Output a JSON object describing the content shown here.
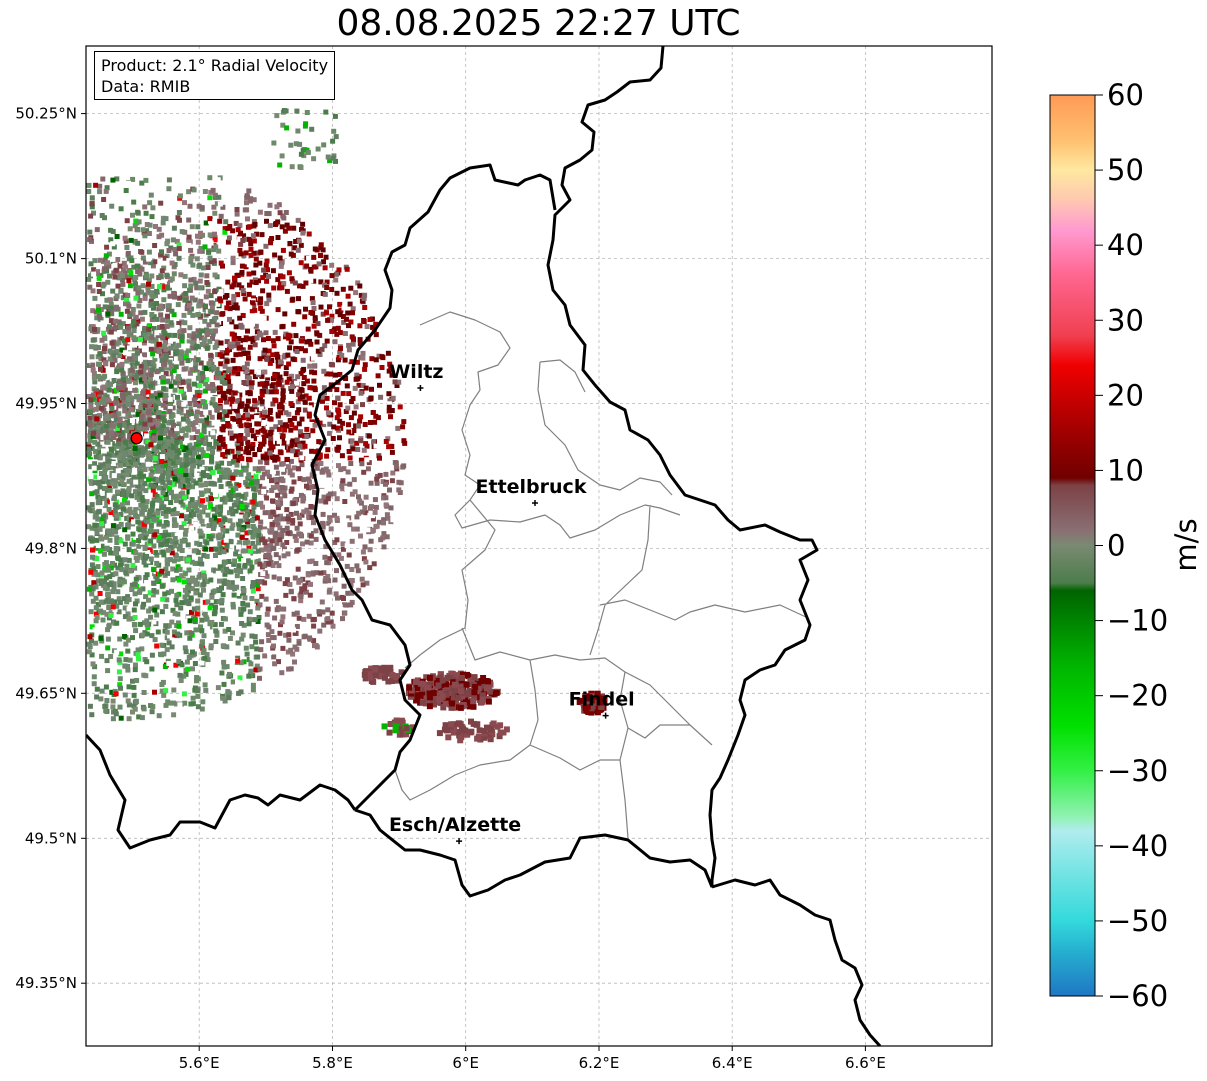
{
  "title": "08.08.2025 22:27 UTC",
  "info": {
    "product": "Product: 2.1° Radial Velocity",
    "data_source": "Data: RMIB"
  },
  "map": {
    "lon_range": [
      5.43,
      6.79
    ],
    "lat_range": [
      49.285,
      50.32
    ],
    "lon_ticks": [
      {
        "value": 5.6,
        "label": "5.6°E"
      },
      {
        "value": 5.8,
        "label": "5.8°E"
      },
      {
        "value": 6.0,
        "label": "6°E"
      },
      {
        "value": 6.2,
        "label": "6.2°E"
      },
      {
        "value": 6.4,
        "label": "6.4°E"
      },
      {
        "value": 6.6,
        "label": "6.6°E"
      }
    ],
    "lat_ticks": [
      {
        "value": 50.25,
        "label": "50.25°N"
      },
      {
        "value": 50.1,
        "label": "50.1°N"
      },
      {
        "value": 49.95,
        "label": "49.95°N"
      },
      {
        "value": 49.8,
        "label": "49.8°N"
      },
      {
        "value": 49.65,
        "label": "49.65°N"
      },
      {
        "value": 49.5,
        "label": "49.5°N"
      },
      {
        "value": 49.35,
        "label": "49.35°N"
      }
    ],
    "radar_site": {
      "lon": 5.506,
      "lat": 49.914
    },
    "cities": [
      {
        "name": "Wiltz",
        "lon": 5.932,
        "lat": 49.966
      },
      {
        "name": "Ettelbruck",
        "lon": 6.104,
        "lat": 49.847
      },
      {
        "name": "Findel",
        "lon": 6.21,
        "lat": 49.627
      },
      {
        "name": "Esch/Alzette",
        "lon": 5.99,
        "lat": 49.497
      }
    ]
  },
  "colorbar": {
    "unit": "m/s",
    "min": -60,
    "max": 60,
    "ticks": [
      {
        "value": 60,
        "label": "60"
      },
      {
        "value": 50,
        "label": "50"
      },
      {
        "value": 40,
        "label": "40"
      },
      {
        "value": 30,
        "label": "30"
      },
      {
        "value": 20,
        "label": "20"
      },
      {
        "value": 10,
        "label": "10"
      },
      {
        "value": 0,
        "label": "0"
      },
      {
        "value": -10,
        "label": "−10"
      },
      {
        "value": -20,
        "label": "−20"
      },
      {
        "value": -30,
        "label": "−30"
      },
      {
        "value": -40,
        "label": "−40"
      },
      {
        "value": -50,
        "label": "−50"
      },
      {
        "value": -60,
        "label": "−60"
      }
    ],
    "color_stops": [
      {
        "value": -60,
        "color": "#1f77c4"
      },
      {
        "value": -54,
        "color": "#26b0d0"
      },
      {
        "value": -50,
        "color": "#33d9dc"
      },
      {
        "value": -44,
        "color": "#70e3e3"
      },
      {
        "value": -38,
        "color": "#b0ecee"
      },
      {
        "value": -36,
        "color": "#8ef2b0"
      },
      {
        "value": -30,
        "color": "#33f045"
      },
      {
        "value": -24,
        "color": "#00e000"
      },
      {
        "value": -16,
        "color": "#00b400"
      },
      {
        "value": -6,
        "color": "#006400"
      },
      {
        "value": -5,
        "color": "#4b7d4b"
      },
      {
        "value": 0,
        "color": "#7a8a72"
      },
      {
        "value": 2,
        "color": "#8a6f73"
      },
      {
        "value": 8,
        "color": "#7d4246"
      },
      {
        "value": 9,
        "color": "#700000"
      },
      {
        "value": 16,
        "color": "#a80000"
      },
      {
        "value": 24,
        "color": "#f00000"
      },
      {
        "value": 28,
        "color": "#f04050"
      },
      {
        "value": 36,
        "color": "#ff6690"
      },
      {
        "value": 42,
        "color": "#ff9ad0"
      },
      {
        "value": 46,
        "color": "#ffc8b0"
      },
      {
        "value": 50,
        "color": "#ffe8a0"
      },
      {
        "value": 54,
        "color": "#ffc070"
      },
      {
        "value": 60,
        "color": "#ff9a55"
      }
    ]
  }
}
